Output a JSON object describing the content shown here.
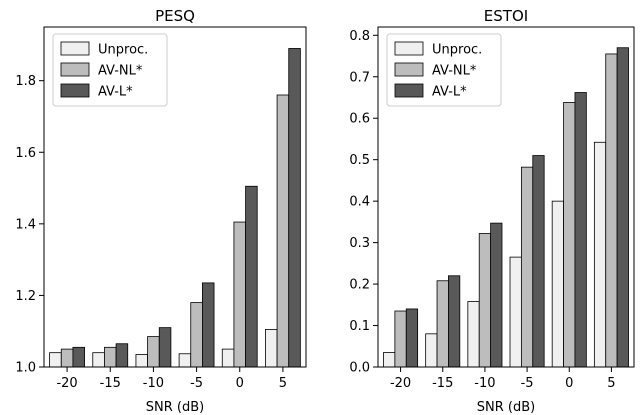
{
  "chart_data": [
    {
      "type": "bar",
      "title": "PESQ",
      "xlabel": "SNR (dB)",
      "ylabel": "",
      "categories": [
        "-20",
        "-15",
        "-10",
        "-5",
        "0",
        "5"
      ],
      "ylim": [
        1.0,
        1.95
      ],
      "yticks": [
        "1.0",
        "1.2",
        "1.4",
        "1.6",
        "1.8"
      ],
      "legend_position": "top-left",
      "grid": false,
      "series": [
        {
          "name": "Unproc.",
          "color": "#f0f0f0",
          "values": [
            1.04,
            1.04,
            1.035,
            1.037,
            1.05,
            1.105
          ]
        },
        {
          "name": "AV-NL*",
          "color": "#bdbdbd",
          "values": [
            1.05,
            1.055,
            1.085,
            1.18,
            1.405,
            1.76
          ]
        },
        {
          "name": "AV-L*",
          "color": "#595959",
          "values": [
            1.055,
            1.065,
            1.11,
            1.235,
            1.505,
            1.89
          ]
        }
      ]
    },
    {
      "type": "bar",
      "title": "ESTOI",
      "xlabel": "SNR (dB)",
      "ylabel": "",
      "categories": [
        "-20",
        "-15",
        "-10",
        "-5",
        "0",
        "5"
      ],
      "ylim": [
        0.0,
        0.82
      ],
      "yticks": [
        "0.0",
        "0.1",
        "0.2",
        "0.3",
        "0.4",
        "0.5",
        "0.6",
        "0.7",
        "0.8"
      ],
      "legend_position": "top-left",
      "grid": false,
      "series": [
        {
          "name": "Unproc.",
          "color": "#f0f0f0",
          "values": [
            0.035,
            0.08,
            0.158,
            0.265,
            0.4,
            0.542
          ]
        },
        {
          "name": "AV-NL*",
          "color": "#bdbdbd",
          "values": [
            0.135,
            0.208,
            0.322,
            0.482,
            0.638,
            0.755
          ]
        },
        {
          "name": "AV-L*",
          "color": "#595959",
          "values": [
            0.14,
            0.22,
            0.347,
            0.51,
            0.662,
            0.77
          ]
        }
      ]
    }
  ]
}
